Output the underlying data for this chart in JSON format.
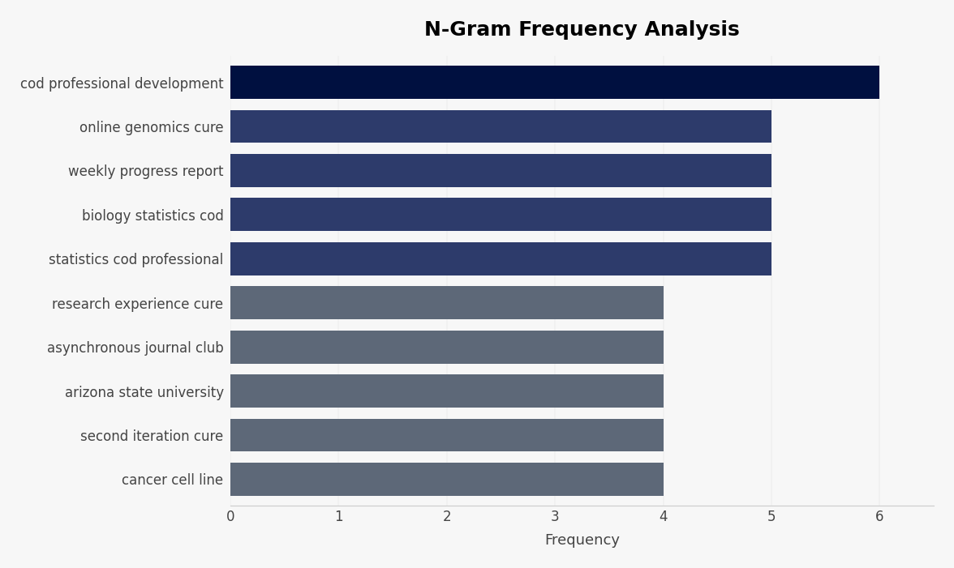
{
  "title": "N-Gram Frequency Analysis",
  "xlabel": "Frequency",
  "categories": [
    "cancer cell line",
    "second iteration cure",
    "arizona state university",
    "asynchronous journal club",
    "research experience cure",
    "statistics cod professional",
    "biology statistics cod",
    "weekly progress report",
    "online genomics cure",
    "cod professional development"
  ],
  "values": [
    4,
    4,
    4,
    4,
    4,
    5,
    5,
    5,
    5,
    6
  ],
  "bar_colors": [
    "#5d6878",
    "#5d6878",
    "#5d6878",
    "#5d6878",
    "#5d6878",
    "#2d3b6b",
    "#2d3b6b",
    "#2d3b6b",
    "#2d3b6b",
    "#001040"
  ],
  "background_color": "#f7f7f7",
  "xlim": [
    0,
    6.5
  ],
  "xticks": [
    0,
    1,
    2,
    3,
    4,
    5,
    6
  ],
  "title_fontsize": 18,
  "label_fontsize": 13,
  "tick_fontsize": 12,
  "bar_height": 0.75,
  "label_color": "#444444"
}
